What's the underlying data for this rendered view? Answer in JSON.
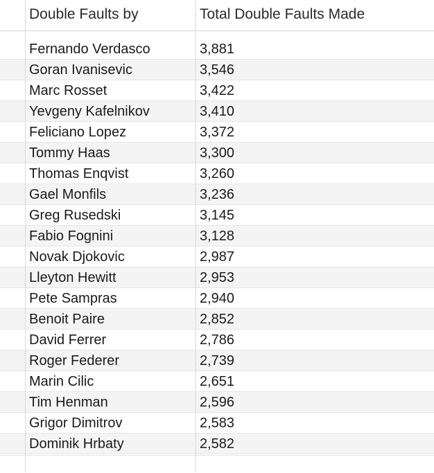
{
  "table": {
    "columns": [
      "Double Faults by",
      "Total Double Faults Made"
    ],
    "rows": [
      {
        "name": "Fernando Verdasco",
        "value": "3,881"
      },
      {
        "name": "Goran Ivanisevic",
        "value": "3,546"
      },
      {
        "name": "Marc Rosset",
        "value": "3,422"
      },
      {
        "name": "Yevgeny Kafelnikov",
        "value": "3,410"
      },
      {
        "name": "Feliciano Lopez",
        "value": "3,372"
      },
      {
        "name": "Tommy Haas",
        "value": "3,300"
      },
      {
        "name": "Thomas Enqvist",
        "value": "3,260"
      },
      {
        "name": "Gael Monfils",
        "value": "3,236"
      },
      {
        "name": "Greg Rusedski",
        "value": "3,145"
      },
      {
        "name": "Fabio Fognini",
        "value": "3,128"
      },
      {
        "name": "Novak Djokovic",
        "value": "2,987"
      },
      {
        "name": "Lleyton Hewitt",
        "value": "2,953"
      },
      {
        "name": "Pete Sampras",
        "value": "2,940"
      },
      {
        "name": "Benoit Paire",
        "value": "2,852"
      },
      {
        "name": "David Ferrer",
        "value": "2,786"
      },
      {
        "name": "Roger Federer",
        "value": "2,739"
      },
      {
        "name": "Marin Cilic",
        "value": "2,651"
      },
      {
        "name": "Tim Henman",
        "value": "2,596"
      },
      {
        "name": "Grigor Dimitrov",
        "value": "2,583"
      },
      {
        "name": "Dominik Hrbaty",
        "value": "2,582"
      }
    ]
  }
}
